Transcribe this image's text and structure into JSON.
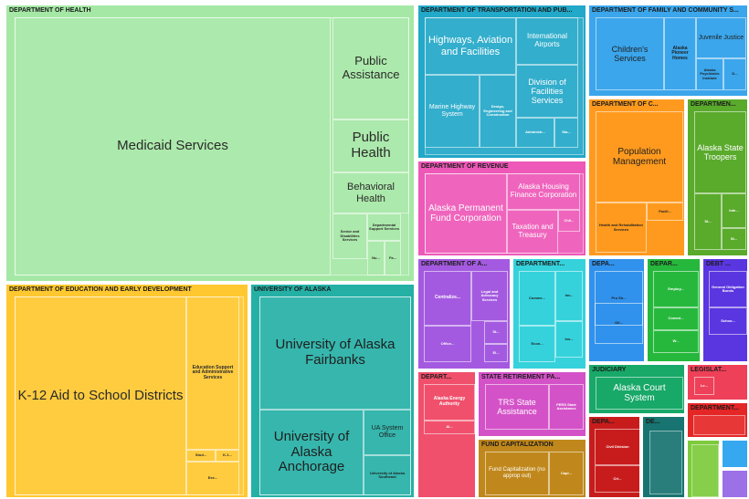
{
  "chart_data": {
    "type": "treemap",
    "groups": [
      {
        "name": "DEPARTMENT OF HEALTH",
        "color": "#a5e8a5",
        "items": [
          {
            "label": "Medicaid Services"
          },
          {
            "label": "Public Assistance"
          },
          {
            "label": "Public Health"
          },
          {
            "label": "Behavioral Health"
          },
          {
            "label": "Senior and Disabilities Services"
          },
          {
            "label": "Departmental Support Services"
          },
          {
            "label": "Nu..."
          },
          {
            "label": "Fa..."
          }
        ]
      },
      {
        "name": "DEPARTMENT OF EDUCATION AND EARLY DEVELOPMENT",
        "color": "#ffc830",
        "items": [
          {
            "label": "K-12 Aid to School Districts"
          },
          {
            "label": "Education Support and Administrative Services"
          },
          {
            "label": "Stud..."
          },
          {
            "label": "K-1..."
          },
          {
            "label": "Exe..."
          }
        ]
      },
      {
        "name": "UNIVERSITY OF ALASKA",
        "color": "#25b0a6",
        "items": [
          {
            "label": "University of Alaska Fairbanks"
          },
          {
            "label": "University of Alaska Anchorage"
          },
          {
            "label": "UA System Office"
          },
          {
            "label": "University of Alaska Southeast"
          }
        ]
      },
      {
        "name": "DEPARTMENT OF TRANSPORTATION AND PUB...",
        "color": "#22a8c8",
        "items": [
          {
            "label": "Highways, Aviation and Facilities"
          },
          {
            "label": "International Airports"
          },
          {
            "label": "Marine Highway System"
          },
          {
            "label": "Design, Engineering and Construction"
          },
          {
            "label": "Division of Facilities Services"
          },
          {
            "label": "Administr..."
          },
          {
            "label": "Sta..."
          }
        ]
      },
      {
        "name": "DEPARTMENT OF FAMILY AND COMMUNITY S...",
        "color": "#3ba6ec",
        "items": [
          {
            "label": "Children's Services"
          },
          {
            "label": "Alaska Pioneer Homes"
          },
          {
            "label": "Juvenile Justice"
          },
          {
            "label": "Alaska Psychiatric Institute"
          },
          {
            "label": "D..."
          }
        ]
      },
      {
        "name": "DEPARTMENT OF REVENUE",
        "color": "#ee58b8",
        "items": [
          {
            "label": "Alaska Permanent Fund Corporation"
          },
          {
            "label": "Alaska Housing Finance Corporation"
          },
          {
            "label": "Taxation and Treasury"
          },
          {
            "label": "Chil..."
          }
        ]
      },
      {
        "name": "DEPARTMENT OF C...",
        "color": "#ff9a1e",
        "items": [
          {
            "label": "Population Management"
          },
          {
            "label": "Health and Rehabilitation Services"
          },
          {
            "label": "Facili..."
          }
        ]
      },
      {
        "name": "DEPARTMEN...",
        "color": "#5aaa2c",
        "items": [
          {
            "label": "Alaska State Troopers"
          },
          {
            "label": "St..."
          },
          {
            "label": "Inte..."
          },
          {
            "label": "St..."
          }
        ]
      },
      {
        "name": "DEPARTMENT OF A...",
        "color": "#a45ae0",
        "items": [
          {
            "label": "Centralize..."
          },
          {
            "label": "Legal and Advocacy Services"
          },
          {
            "label": "Office..."
          },
          {
            "label": "St..."
          },
          {
            "label": "El..."
          }
        ]
      },
      {
        "name": "DEPARTMENT...",
        "color": "#35d2dc",
        "items": [
          {
            "label": "Comme..."
          },
          {
            "label": "Inv..."
          },
          {
            "label": "Ins..."
          },
          {
            "label": "Econ..."
          }
        ]
      },
      {
        "name": "DEPA...",
        "color": "#3092ec",
        "items": [
          {
            "label": "Pro Sh..."
          },
          {
            "label": "Oil..."
          }
        ]
      },
      {
        "name": "DEPAR...",
        "color": "#26b83c",
        "items": [
          {
            "label": "Employ..."
          },
          {
            "label": "Commi..."
          },
          {
            "label": "W..."
          }
        ]
      },
      {
        "name": "DEBT ...",
        "color": "#5a36e0",
        "items": [
          {
            "label": "General Obligation Bonds"
          },
          {
            "label": "Schoo..."
          }
        ]
      },
      {
        "name": "DEPART...",
        "color": "#f0506c",
        "items": [
          {
            "label": "Alaska Energy Authority"
          },
          {
            "label": "Al..."
          }
        ]
      },
      {
        "name": "STATE RETIREMENT PA...",
        "color": "#d452c8",
        "items": [
          {
            "label": "TRS State Assistance"
          },
          {
            "label": "PERS State Assistance"
          }
        ]
      },
      {
        "name": "FUND CAPITALIZATION",
        "color": "#c0881c",
        "items": [
          {
            "label": "Fund Capitalization (no approp out)"
          },
          {
            "label": "Capi..."
          }
        ]
      },
      {
        "name": "JUDICIARY",
        "color": "#18a868",
        "items": [
          {
            "label": "Alaska Court System"
          }
        ]
      },
      {
        "name": "LEGISLAT...",
        "color": "#ee4058",
        "items": [
          {
            "label": "Le..."
          }
        ]
      },
      {
        "name": "DEPA...",
        "color": "#c81c1c",
        "items": [
          {
            "label": "Civil Division"
          },
          {
            "label": "Cri..."
          }
        ]
      },
      {
        "name": "DE...",
        "color": "#177470",
        "items": []
      },
      {
        "name": "DEPARTMENT...",
        "color": "#e52626",
        "items": []
      },
      {
        "name": "",
        "color": "#7dca3c",
        "items": []
      },
      {
        "name": "",
        "color": "#35a8f0",
        "items": []
      },
      {
        "name": "",
        "color": "#9c70e6",
        "items": []
      }
    ]
  }
}
